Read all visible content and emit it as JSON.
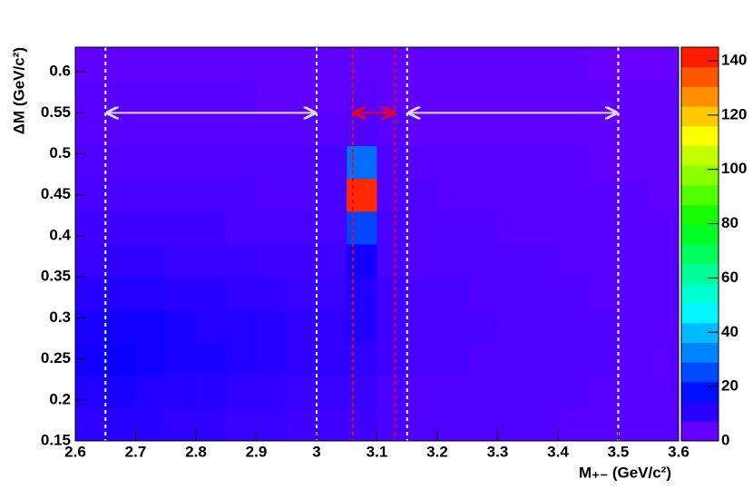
{
  "chart_data": {
    "type": "heatmap",
    "x_label": "M₊₋ (GeV/c²)",
    "y_label": "ΔM (GeV/c²)",
    "x_bins": [
      2.6,
      2.65,
      2.7,
      2.75,
      2.8,
      2.85,
      2.9,
      2.95,
      3.0,
      3.05,
      3.1,
      3.15,
      3.2,
      3.25,
      3.3,
      3.35,
      3.4,
      3.45,
      3.5,
      3.55,
      3.6
    ],
    "y_bins": [
      0.15,
      0.19,
      0.23,
      0.27,
      0.31,
      0.35,
      0.39,
      0.43,
      0.47,
      0.51,
      0.55,
      0.59,
      0.63
    ],
    "z": [
      [
        10,
        11,
        11,
        10,
        10,
        9,
        9,
        8,
        8,
        8,
        7,
        6,
        6,
        6,
        6,
        6,
        5,
        5,
        5,
        5
      ],
      [
        12,
        13,
        12,
        12,
        11,
        10,
        10,
        9,
        9,
        9,
        7,
        6,
        6,
        6,
        6,
        6,
        6,
        5,
        5,
        5
      ],
      [
        14,
        15,
        14,
        13,
        13,
        12,
        11,
        10,
        10,
        10,
        8,
        7,
        7,
        6,
        6,
        6,
        6,
        6,
        5,
        5
      ],
      [
        13,
        14,
        14,
        13,
        12,
        12,
        11,
        10,
        10,
        12,
        8,
        7,
        7,
        7,
        6,
        6,
        6,
        6,
        5,
        5
      ],
      [
        11,
        12,
        12,
        11,
        11,
        10,
        10,
        9,
        9,
        12,
        8,
        7,
        7,
        6,
        6,
        6,
        6,
        5,
        5,
        5
      ],
      [
        9,
        10,
        10,
        9,
        9,
        9,
        8,
        8,
        8,
        14,
        7,
        6,
        6,
        6,
        6,
        6,
        5,
        5,
        5,
        5
      ],
      [
        8,
        8,
        8,
        8,
        8,
        7,
        7,
        7,
        7,
        25,
        7,
        6,
        6,
        6,
        5,
        5,
        5,
        5,
        5,
        5
      ],
      [
        7,
        7,
        7,
        7,
        7,
        7,
        6,
        6,
        7,
        140,
        6,
        6,
        5,
        5,
        5,
        5,
        5,
        5,
        5,
        4
      ],
      [
        6,
        6,
        6,
        6,
        6,
        6,
        6,
        6,
        7,
        30,
        6,
        5,
        5,
        5,
        5,
        5,
        5,
        4,
        4,
        4
      ],
      [
        5,
        5,
        5,
        5,
        5,
        5,
        5,
        5,
        5,
        6,
        5,
        4,
        4,
        4,
        4,
        4,
        4,
        4,
        4,
        4
      ],
      [
        5,
        5,
        5,
        5,
        5,
        5,
        4,
        4,
        4,
        5,
        4,
        4,
        4,
        4,
        4,
        4,
        4,
        4,
        4,
        4
      ],
      [
        4,
        4,
        4,
        4,
        4,
        4,
        4,
        4,
        4,
        4,
        4,
        4,
        4,
        4,
        4,
        4,
        4,
        3,
        3,
        3
      ]
    ],
    "xlim": [
      2.6,
      3.6
    ],
    "xticks": [
      2.6,
      2.7,
      2.8,
      2.9,
      3,
      3.1,
      3.2,
      3.3,
      3.4,
      3.5,
      3.6
    ],
    "ylim": [
      0.15,
      0.63
    ],
    "yticks": [
      0.15,
      0.2,
      0.25,
      0.3,
      0.35,
      0.4,
      0.45,
      0.5,
      0.55,
      0.6
    ],
    "zlim": [
      0,
      145
    ],
    "zticks": [
      0,
      20,
      40,
      60,
      80,
      100,
      120,
      140
    ],
    "vlines": [
      {
        "x": 2.65,
        "color": "#ffffff"
      },
      {
        "x": 3.0,
        "color": "#ffffff"
      },
      {
        "x": 3.06,
        "color": "#ff0000"
      },
      {
        "x": 3.13,
        "color": "#ff0000"
      },
      {
        "x": 3.15,
        "color": "#ffffff"
      },
      {
        "x": 3.5,
        "color": "#ffffff"
      }
    ],
    "arrows": [
      {
        "x": [
          2.65,
          3.0
        ],
        "y": 0.55,
        "color": "#dddddd"
      },
      {
        "x": [
          3.06,
          3.13
        ],
        "y": 0.55,
        "color": "#ff0000"
      },
      {
        "x": [
          3.15,
          3.5
        ],
        "y": 0.55,
        "color": "#dddddd"
      }
    ]
  }
}
